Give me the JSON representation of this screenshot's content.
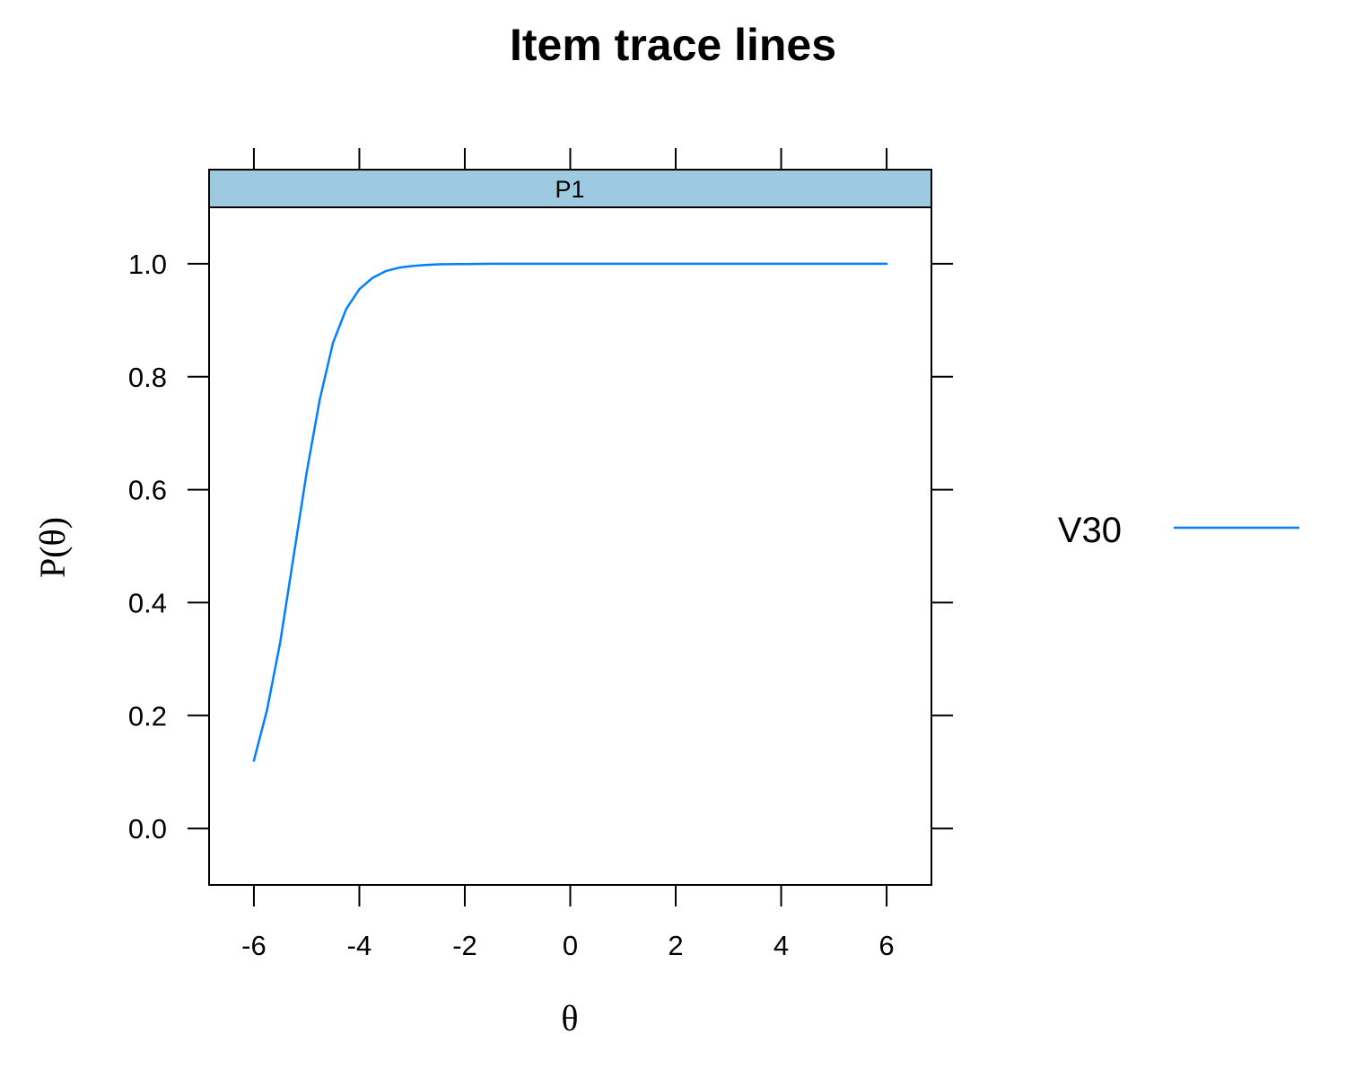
{
  "chart_data": {
    "type": "line",
    "title": "Item trace lines",
    "xlabel": "θ",
    "ylabel": "P(θ)",
    "panel_label": "P1",
    "x_ticks": [
      "-6",
      "-4",
      "-2",
      "0",
      "2",
      "4",
      "6"
    ],
    "y_ticks": [
      "0.0",
      "0.2",
      "0.4",
      "0.6",
      "0.8",
      "1.0"
    ],
    "xlim": [
      -6.85,
      6.85
    ],
    "ylim": [
      -0.1,
      1.1
    ],
    "grid": false,
    "legend_position": "right",
    "series": [
      {
        "name": "V30",
        "color": "#0080ff",
        "x": [
          -6.0,
          -5.75,
          -5.5,
          -5.25,
          -5.0,
          -4.75,
          -4.5,
          -4.25,
          -4.0,
          -3.75,
          -3.5,
          -3.25,
          -3.0,
          -2.75,
          -2.5,
          -2.0,
          -1.5,
          -1.0,
          0.0,
          1.0,
          2.0,
          3.0,
          4.0,
          5.0,
          6.0
        ],
        "y": [
          0.12,
          0.21,
          0.33,
          0.48,
          0.63,
          0.76,
          0.86,
          0.92,
          0.955,
          0.975,
          0.987,
          0.993,
          0.996,
          0.998,
          0.999,
          0.9995,
          1.0,
          1.0,
          1.0,
          1.0,
          1.0,
          1.0,
          1.0,
          1.0,
          1.0
        ]
      }
    ]
  }
}
